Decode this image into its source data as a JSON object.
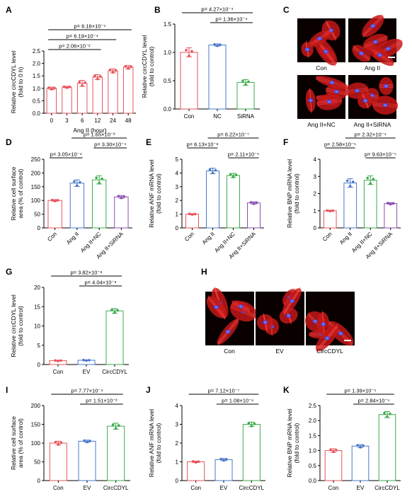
{
  "colors": {
    "con": "#e8535a",
    "ev": "#4a78c8",
    "nc": "#4a78c8",
    "green": "#3bab4a",
    "purple": "#8a4fb4",
    "time": "#e8535a"
  },
  "panels": [
    {
      "id": "A",
      "type": "bar",
      "ylabel": [
        "Relative circCDYL level",
        "(fold to 0 h)"
      ],
      "xlabel": "Ang II (hour)",
      "categories": [
        "0",
        "3",
        "6",
        "12",
        "24",
        "48"
      ],
      "values": [
        1.0,
        1.05,
        1.2,
        1.45,
        1.7,
        1.85
      ],
      "errors": [
        0.05,
        0.03,
        0.12,
        0.1,
        0.08,
        0.07
      ],
      "colorKeys": [
        "time",
        "time",
        "time",
        "time",
        "time",
        "time"
      ],
      "ylim": [
        0,
        2.5
      ],
      "yticks": [
        0,
        0.5,
        1.0,
        1.5,
        2.0,
        2.5
      ],
      "ytickLabels": [
        "0.0",
        "0.5",
        "1.0",
        "1.5",
        "2.0",
        "2.5"
      ],
      "rotate": false,
      "pvals": [
        {
          "text": "p= 6.16×10⁻⁵",
          "from": 0,
          "to": 5
        },
        {
          "text": "p= 6.19×10⁻⁴",
          "from": 0,
          "to": 4
        },
        {
          "text": "p= 2.06×10⁻²",
          "from": 0,
          "to": 3
        }
      ]
    },
    {
      "id": "B",
      "type": "bar",
      "ylabel": [
        "Relative circCDYL level",
        "(fold to control)"
      ],
      "xlabel": "",
      "categories": [
        "Con",
        "NC",
        "SiRNA"
      ],
      "values": [
        1.0,
        1.13,
        0.47
      ],
      "errors": [
        0.08,
        0.02,
        0.05
      ],
      "colorKeys": [
        "con",
        "nc",
        "green"
      ],
      "ylim": [
        0,
        1.5
      ],
      "yticks": [
        0,
        0.5,
        1.0,
        1.5
      ],
      "ytickLabels": [
        "0.0",
        "0.5",
        "1.0",
        "1.5"
      ],
      "rotate": false,
      "pvals": [
        {
          "text": "p= 4.27×10⁻⁴",
          "from": 0,
          "to": 2
        },
        {
          "text": "p= 1.36×10⁻⁴",
          "from": 1,
          "to": 2
        }
      ]
    },
    {
      "id": "D",
      "type": "bar",
      "ylabel": [
        "Relative cell surface",
        "area (% of control)"
      ],
      "xlabel": "",
      "categories": [
        "Con",
        "Ang II",
        "Ang II+NC",
        "Ang II+SiRNA"
      ],
      "values": [
        100,
        163,
        175,
        113
      ],
      "errors": [
        3,
        12,
        15,
        5
      ],
      "colorKeys": [
        "con",
        "nc",
        "green",
        "purple"
      ],
      "ylim": [
        0,
        250
      ],
      "yticks": [
        0,
        50,
        100,
        150,
        200,
        250
      ],
      "ytickLabels": [
        "0",
        "50",
        "100",
        "150",
        "200",
        "250"
      ],
      "rotate": true,
      "pvals": [
        {
          "text": "p= 1.65×10⁻³",
          "from": 1,
          "to": 3
        },
        {
          "text": "p= 3.30×10⁻⁴",
          "from": 2,
          "to": 3
        },
        {
          "text": "p= 3.05×10⁻⁴",
          "from": 0,
          "to": 1
        }
      ]
    },
    {
      "id": "E",
      "type": "bar",
      "ylabel": [
        "Relative ANF mRNA level",
        "(fold to control)"
      ],
      "xlabel": "",
      "categories": [
        "Con",
        "Ang II",
        "Ang II+NC",
        "Ang II+SiRNA"
      ],
      "values": [
        1.0,
        4.15,
        3.82,
        1.82
      ],
      "errors": [
        0.04,
        0.2,
        0.15,
        0.08
      ],
      "colorKeys": [
        "con",
        "nc",
        "green",
        "purple"
      ],
      "ylim": [
        0,
        5
      ],
      "yticks": [
        0,
        1,
        2,
        3,
        4,
        5
      ],
      "ytickLabels": [
        "0",
        "1",
        "2",
        "3",
        "4",
        "5"
      ],
      "rotate": true,
      "pvals": [
        {
          "text": "p= 6.22×10⁻⁷",
          "from": 1,
          "to": 3
        },
        {
          "text": "p= 6.13×10⁻⁸",
          "from": 0,
          "to": 1
        },
        {
          "text": "p= 2.11×10⁻⁵",
          "from": 2,
          "to": 3
        }
      ]
    },
    {
      "id": "F",
      "type": "bar",
      "ylabel": [
        "Relative BNP mRNA level",
        "(fold to control)"
      ],
      "xlabel": "",
      "categories": [
        "Con",
        "Ang II",
        "Ang II+NC",
        "Ang II+SiRNA"
      ],
      "values": [
        1.0,
        2.62,
        2.78,
        1.42
      ],
      "errors": [
        0.03,
        0.25,
        0.25,
        0.05
      ],
      "colorKeys": [
        "con",
        "nc",
        "green",
        "purple"
      ],
      "ylim": [
        0,
        4
      ],
      "yticks": [
        0,
        1,
        2,
        3,
        4
      ],
      "ytickLabels": [
        "0",
        "1",
        "2",
        "3",
        "4"
      ],
      "rotate": true,
      "pvals": [
        {
          "text": "p= 2.32×10⁻⁴",
          "from": 1,
          "to": 3
        },
        {
          "text": "p= 2.58×10⁻⁵",
          "from": 0,
          "to": 1
        },
        {
          "text": "p= 9.63×10⁻⁵",
          "from": 2,
          "to": 3
        }
      ]
    },
    {
      "id": "G",
      "type": "bar",
      "ylabel": [
        "Relative circCDYL level",
        "(fold to control)"
      ],
      "xlabel": "",
      "categories": [
        "Con",
        "EV",
        "CircCDYL"
      ],
      "values": [
        1.0,
        1.1,
        13.9
      ],
      "errors": [
        0.1,
        0.1,
        0.6
      ],
      "colorKeys": [
        "con",
        "ev",
        "green"
      ],
      "ylim": [
        0,
        20
      ],
      "yticks": [
        0,
        5,
        10,
        15,
        20
      ],
      "ytickLabels": [
        "0",
        "5",
        "10",
        "15",
        "20"
      ],
      "rotate": false,
      "pvals": [
        {
          "text": "p= 3.82×10⁻⁸",
          "from": 0,
          "to": 2
        },
        {
          "text": "p= 4.04×10⁻⁸",
          "from": 1,
          "to": 2
        }
      ]
    },
    {
      "id": "I",
      "type": "bar",
      "ylabel": [
        "Relative cell surface",
        "area (% of control)"
      ],
      "xlabel": "",
      "categories": [
        "Con",
        "EV",
        "CircCDYL"
      ],
      "values": [
        100,
        105,
        145
      ],
      "errors": [
        5,
        3,
        8
      ],
      "colorKeys": [
        "con",
        "ev",
        "green"
      ],
      "ylim": [
        0,
        200
      ],
      "yticks": [
        0,
        50,
        100,
        150,
        200
      ],
      "ytickLabels": [
        "0",
        "50",
        "100",
        "150",
        "200"
      ],
      "rotate": false,
      "pvals": [
        {
          "text": "p= 7.77×10⁻⁴",
          "from": 0,
          "to": 2
        },
        {
          "text": "p= 1.51×10⁻³",
          "from": 1,
          "to": 2
        }
      ]
    },
    {
      "id": "J",
      "type": "bar",
      "ylabel": [
        "Relative ANF mRNA level",
        "(fold to control)"
      ],
      "xlabel": "",
      "categories": [
        "Con",
        "EV",
        "CircCDYL"
      ],
      "values": [
        1.0,
        1.12,
        3.0
      ],
      "errors": [
        0.04,
        0.06,
        0.12
      ],
      "colorKeys": [
        "con",
        "ev",
        "green"
      ],
      "ylim": [
        0,
        4
      ],
      "yticks": [
        0,
        1,
        2,
        3,
        4
      ],
      "ytickLabels": [
        "0",
        "1",
        "2",
        "3",
        "4"
      ],
      "rotate": false,
      "pvals": [
        {
          "text": "p= 7.12×10⁻⁷",
          "from": 0,
          "to": 2
        },
        {
          "text": "p= 1.08×10⁻⁶",
          "from": 1,
          "to": 2
        }
      ]
    },
    {
      "id": "K",
      "type": "bar",
      "ylabel": [
        "Relative BNP mRNA level",
        "(fold to control)"
      ],
      "xlabel": "",
      "categories": [
        "Con",
        "EV",
        "CircCDYL"
      ],
      "values": [
        1.0,
        1.15,
        2.2
      ],
      "errors": [
        0.06,
        0.05,
        0.1
      ],
      "colorKeys": [
        "con",
        "ev",
        "green"
      ],
      "ylim": [
        0,
        2.5
      ],
      "yticks": [
        0,
        0.5,
        1.0,
        1.5,
        2.0,
        2.5
      ],
      "ytickLabels": [
        "0.0",
        "0.5",
        "1.0",
        "1.5",
        "2.0",
        "2.5"
      ],
      "rotate": false,
      "pvals": [
        {
          "text": "p= 1.39×10⁻⁵",
          "from": 0,
          "to": 2
        },
        {
          "text": "p= 2.84×10⁻⁵",
          "from": 1,
          "to": 2
        }
      ]
    }
  ],
  "micrographs": {
    "C": {
      "label": "C",
      "tiles": [
        "Con",
        "Ang II",
        "Ang II+NC",
        "Ang II+SiRNA"
      ]
    },
    "H": {
      "label": "H",
      "tiles": [
        "Con",
        "EV",
        "CircCDYL"
      ]
    }
  }
}
